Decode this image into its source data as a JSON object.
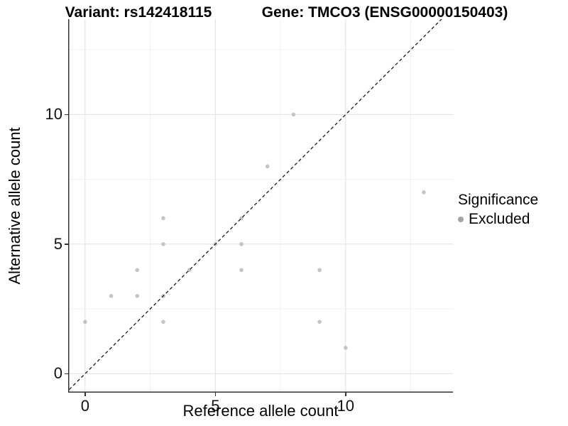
{
  "titles": {
    "variant": "Variant: rs142418115",
    "gene": "Gene: TMCO3 (ENSG00000150403)"
  },
  "legend": {
    "title": "Significance",
    "items": [
      {
        "label": "Excluded",
        "marker_color": "#a3a3a3"
      }
    ]
  },
  "chart_data": {
    "type": "scatter",
    "title": "Variant rs142418115 / Gene TMCO3 (ENSG00000150403)",
    "xlabel": "Reference allele count",
    "ylabel": "Alternative allele count",
    "xlim": [
      -0.65,
      14.12
    ],
    "ylim": [
      -0.73,
      13.68
    ],
    "x_ticks": [
      0,
      5,
      10
    ],
    "y_ticks": [
      0,
      5,
      10
    ],
    "x_minor_gridlines": [
      2.5,
      7.5,
      12.5
    ],
    "y_minor_gridlines": [
      2.5,
      7.5,
      12.5
    ],
    "grid": true,
    "legend_position": "right",
    "point_color": "#c4c4c4",
    "point_radius_px": 2.8,
    "major_grid_color": "#e3e3e3",
    "minor_grid_color": "#efefef",
    "axis_line_color": "#333333",
    "identity_line": {
      "slope": 1,
      "intercept": 0,
      "style": "dashed",
      "color": "#1a1a1a"
    },
    "series": [
      {
        "name": "Excluded",
        "points": [
          [
            0,
            2
          ],
          [
            1,
            3
          ],
          [
            2,
            3
          ],
          [
            2,
            4
          ],
          [
            3,
            2
          ],
          [
            3,
            3
          ],
          [
            3,
            5
          ],
          [
            3,
            6
          ],
          [
            4,
            4
          ],
          [
            5,
            5
          ],
          [
            6,
            4
          ],
          [
            6,
            5
          ],
          [
            6,
            6
          ],
          [
            7,
            8
          ],
          [
            8,
            10
          ],
          [
            9,
            2
          ],
          [
            9,
            4
          ],
          [
            10,
            1
          ],
          [
            13,
            7
          ]
        ]
      }
    ]
  }
}
